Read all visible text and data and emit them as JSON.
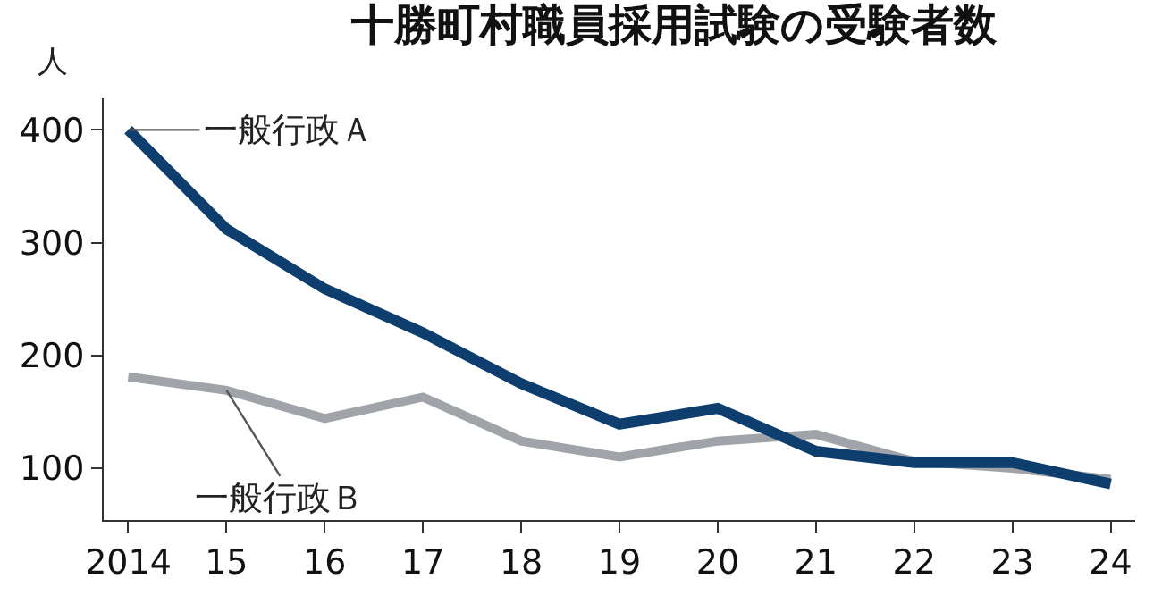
{
  "chart_data": {
    "type": "line",
    "title": "十勝町村職員採用試験の受験者数",
    "ylabel": "人",
    "categories": [
      "2014",
      "15",
      "16",
      "17",
      "18",
      "19",
      "20",
      "21",
      "22",
      "23",
      "24"
    ],
    "series": [
      {
        "name": "一般行政Ａ",
        "color": "#0d3e6e",
        "values": [
          400,
          312,
          259,
          220,
          175,
          139,
          153,
          115,
          105,
          105,
          86
        ]
      },
      {
        "name": "一般行政Ｂ",
        "color": "#a0a4a8",
        "values": [
          181,
          169,
          144,
          163,
          124,
          110,
          124,
          130,
          106,
          100,
          90
        ]
      }
    ],
    "ylim": [
      54,
      428
    ],
    "yticks": [
      100,
      200,
      300,
      400
    ],
    "legend": false,
    "marker": "none",
    "line_style": "solid"
  }
}
